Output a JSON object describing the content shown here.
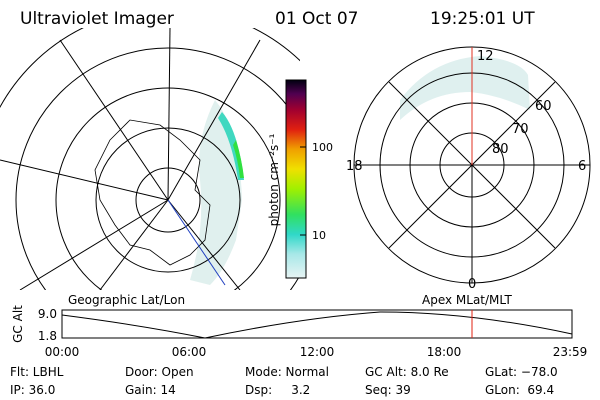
{
  "header": {
    "instrument": "Ultraviolet Imager",
    "date": "01 Oct 07",
    "time": "19:25:01 UT"
  },
  "colorbar": {
    "unit_label": "photon cm⁻²s⁻¹",
    "tick_labels": [
      "100",
      "10"
    ]
  },
  "polar_plot": {
    "labels": [
      "12",
      "60",
      "70",
      "80",
      "18",
      "6",
      "0"
    ]
  },
  "panels": {
    "left_label": "Geographic Lat/Lon",
    "right_label": "Apex MLat/MLT"
  },
  "altitude_plot": {
    "axis_label": "GC Alt",
    "y_labels": [
      "9.0",
      "1.8"
    ],
    "x_labels": [
      "00:00",
      "06:00",
      "12:00",
      "18:00",
      "23:59"
    ]
  },
  "info": [
    [
      "Flt: LBHL",
      "Door: Open",
      "Mode: Normal",
      "GC Alt: 8.0 Re",
      "GLat: −78.0"
    ],
    [
      "IP: 36.0",
      "Gain: 14",
      "Dsp:     3.2",
      "Seq: 39",
      "GLon:  69.4"
    ]
  ]
}
